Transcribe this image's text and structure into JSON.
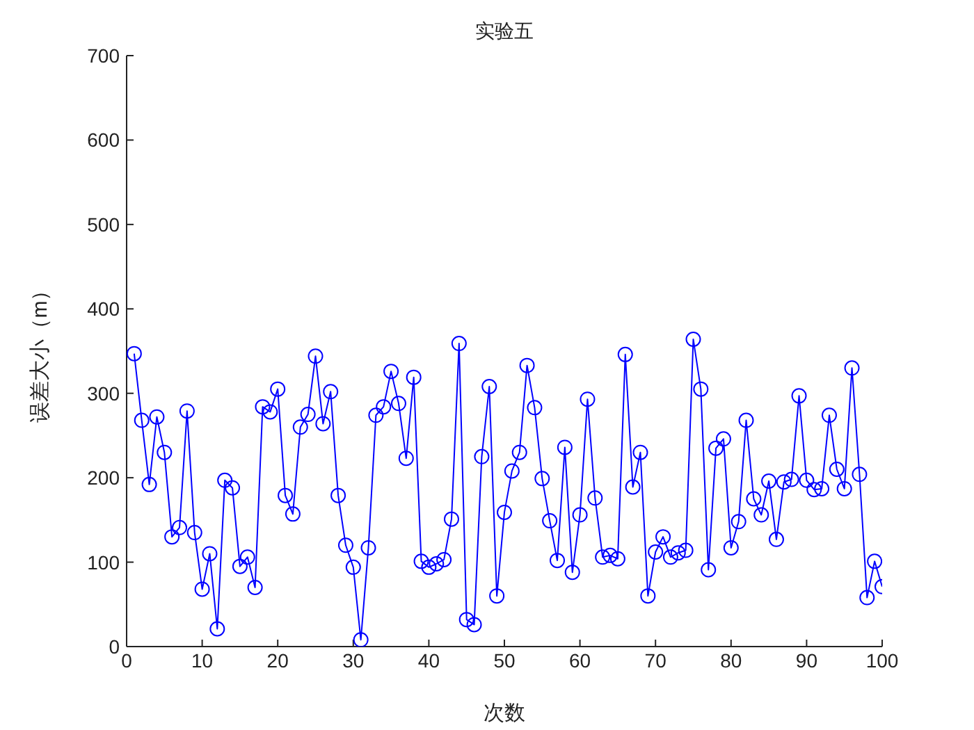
{
  "chart_data": {
    "type": "line",
    "title": "实验五",
    "xlabel": "次数",
    "ylabel": "误差大小（m）",
    "x": [
      1,
      2,
      3,
      4,
      5,
      6,
      7,
      8,
      9,
      10,
      11,
      12,
      13,
      14,
      15,
      16,
      17,
      18,
      19,
      20,
      21,
      22,
      23,
      24,
      25,
      26,
      27,
      28,
      29,
      30,
      31,
      32,
      33,
      34,
      35,
      36,
      37,
      38,
      39,
      40,
      41,
      42,
      43,
      44,
      45,
      46,
      47,
      48,
      49,
      50,
      51,
      52,
      53,
      54,
      55,
      56,
      57,
      58,
      59,
      60,
      61,
      62,
      63,
      64,
      65,
      66,
      67,
      68,
      69,
      70,
      71,
      72,
      73,
      74,
      75,
      76,
      77,
      78,
      79,
      80,
      81,
      82,
      83,
      84,
      85,
      86,
      87,
      88,
      89,
      90,
      91,
      92,
      93,
      94,
      95,
      96,
      97,
      98,
      99,
      100
    ],
    "series": [
      {
        "color": "#0000ff",
        "values": [
          347,
          268,
          192,
          272,
          230,
          130,
          141,
          279,
          135,
          68,
          110,
          21,
          197,
          188,
          95,
          106,
          70,
          284,
          278,
          305,
          179,
          157,
          260,
          275,
          344,
          264,
          302,
          179,
          120,
          94,
          8,
          117,
          274,
          284,
          326,
          288,
          223,
          319,
          101,
          94,
          98,
          103,
          151,
          359,
          32,
          26,
          225,
          308,
          60,
          159,
          208,
          230,
          333,
          283,
          199,
          149,
          102,
          236,
          88,
          156,
          293,
          176,
          106,
          108,
          104,
          346,
          189,
          230,
          60,
          112,
          130,
          106,
          111,
          114,
          364,
          305,
          91,
          235,
          246,
          117,
          148,
          268,
          175,
          156,
          196,
          127,
          195,
          198,
          297,
          197,
          186,
          187,
          274,
          210,
          187,
          330,
          204,
          58,
          101,
          71
        ]
      }
    ],
    "xlim": [
      0,
      100
    ],
    "xticks": [
      0,
      10,
      20,
      30,
      40,
      50,
      60,
      70,
      80,
      90,
      100
    ],
    "ylim": [
      0,
      700
    ],
    "yticks": [
      0,
      100,
      200,
      300,
      400,
      500,
      600,
      700
    ],
    "marker": "circle",
    "line_style": "solid"
  }
}
